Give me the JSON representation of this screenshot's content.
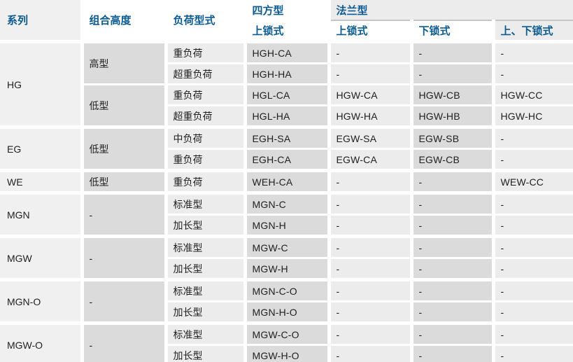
{
  "table": {
    "headers": {
      "series": "系列",
      "assembly_height": "组合高度",
      "load_type": "负荷型式",
      "square_type": "四方型",
      "square_sub": "上锁式",
      "flange_type": "法兰型",
      "flange_subs": [
        "上锁式",
        "下锁式",
        "上、下锁式"
      ]
    },
    "groups": [
      {
        "series": "HG",
        "rows": [
          {
            "height": "高型",
            "height_span": 2,
            "load": "重负荷",
            "square": "HGH-CA",
            "flange": [
              "-",
              "-",
              "-"
            ]
          },
          {
            "load": "超重负荷",
            "square": "HGH-HA",
            "flange": [
              "-",
              "-",
              "-"
            ]
          },
          {
            "height": "低型",
            "height_span": 2,
            "load": "重负荷",
            "square": "HGL-CA",
            "flange": [
              "HGW-CA",
              "HGW-CB",
              "HGW-CC"
            ]
          },
          {
            "load": "超重负荷",
            "square": "HGL-HA",
            "flange": [
              "HGW-HA",
              "HGW-HB",
              "HGW-HC"
            ]
          }
        ]
      },
      {
        "series": "EG",
        "rows": [
          {
            "height": "低型",
            "height_span": 2,
            "load": "中负荷",
            "square": "EGH-SA",
            "flange": [
              "EGW-SA",
              "EGW-SB",
              "-"
            ]
          },
          {
            "load": "重负荷",
            "square": "EGH-CA",
            "flange": [
              "EGW-CA",
              "EGW-CB",
              "-"
            ]
          }
        ]
      },
      {
        "series": "WE",
        "rows": [
          {
            "height": "低型",
            "height_span": 1,
            "load": "重负荷",
            "square": "WEH-CA",
            "flange": [
              "-",
              "-",
              "WEW-CC"
            ]
          }
        ]
      },
      {
        "series": "MGN",
        "rows": [
          {
            "height": "-",
            "height_span": 2,
            "load": "标准型",
            "square": "MGN-C",
            "flange": [
              "-",
              "-",
              "-"
            ]
          },
          {
            "load": "加长型",
            "square": "MGN-H",
            "flange": [
              "-",
              "-",
              "-"
            ]
          }
        ]
      },
      {
        "series": "MGW",
        "rows": [
          {
            "height": "-",
            "height_span": 2,
            "load": "标准型",
            "square": "MGW-C",
            "flange": [
              "-",
              "-",
              "-"
            ]
          },
          {
            "load": "加长型",
            "square": "MGW-H",
            "flange": [
              "-",
              "-",
              "-"
            ]
          }
        ]
      },
      {
        "series": "MGN-O",
        "rows": [
          {
            "height": "-",
            "height_span": 2,
            "load": "标准型",
            "square": "MGN-C-O",
            "flange": [
              "-",
              "-",
              "-"
            ]
          },
          {
            "load": "加长型",
            "square": "MGN-H-O",
            "flange": [
              "-",
              "-",
              "-"
            ]
          }
        ]
      },
      {
        "series": "MGW-O",
        "rows": [
          {
            "height": "-",
            "height_span": 2,
            "load": "标准型",
            "square": "MGW-C-O",
            "flange": [
              "-",
              "-",
              "-"
            ]
          },
          {
            "load": "加长型",
            "square": "MGW-H-O",
            "flange": [
              "-",
              "-",
              "-"
            ]
          }
        ]
      }
    ],
    "colors": {
      "header_text": "#0b5a90",
      "cell_light": "#ececec",
      "cell_dark": "#dbdbdb",
      "series_column": "#f0f0f0",
      "body_text": "#1f1f1f",
      "flange_underline": "#c6c6c6",
      "bottom_rule": "#c0c0c0"
    }
  }
}
